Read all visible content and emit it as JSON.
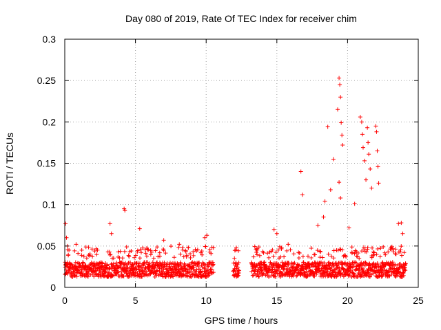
{
  "chart_data": {
    "type": "scatter",
    "title": "Day 080 of 2019, Rate Of TEC Index for receiver chim",
    "xlabel": "GPS time / hours",
    "ylabel": "ROTI / TECUs",
    "xlim": [
      0,
      25
    ],
    "ylim": [
      0,
      0.3
    ],
    "xticks": [
      0,
      5,
      10,
      15,
      20,
      25
    ],
    "yticks": [
      0,
      0.05,
      0.1,
      0.15,
      0.2,
      0.25,
      0.3
    ],
    "xtick_labels": [
      "0",
      "5",
      "10",
      "15",
      "20",
      "25"
    ],
    "ytick_labels": [
      "0",
      "0.05",
      "0.1",
      "0.15",
      "0.2",
      "0.25",
      "0.3"
    ],
    "grid": true,
    "marker": "+",
    "color": "#ff0000",
    "data_segments": [
      [
        0,
        10.5
      ],
      [
        11.9,
        12.3
      ],
      [
        13.2,
        24.1
      ]
    ],
    "baseline_range": [
      0.005,
      0.035
    ],
    "x": [
      0.05,
      0.12,
      0.2,
      0.3,
      0.8,
      1.2,
      3.2,
      3.3,
      4.2,
      4.25,
      5.3,
      7.0,
      8.1,
      9.9,
      10.05,
      12.0,
      12.1,
      14.8,
      15.0,
      15.8,
      16.7,
      16.8,
      17.9,
      18.3,
      18.4,
      18.6,
      18.8,
      19.0,
      19.3,
      19.4,
      19.45,
      19.5,
      19.55,
      19.6,
      19.65,
      19.4,
      19.5,
      20.1,
      20.5,
      20.9,
      21.0,
      21.05,
      21.1,
      21.2,
      21.3,
      21.4,
      21.45,
      21.5,
      21.6,
      21.7,
      22.0,
      22.05,
      22.1,
      22.15,
      22.2,
      23.6,
      23.8,
      23.9
    ],
    "y": [
      0.077,
      0.06,
      0.05,
      0.045,
      0.052,
      0.045,
      0.077,
      0.065,
      0.095,
      0.093,
      0.071,
      0.057,
      0.052,
      0.06,
      0.063,
      0.035,
      0.03,
      0.07,
      0.065,
      0.052,
      0.14,
      0.112,
      0.075,
      0.085,
      0.104,
      0.194,
      0.118,
      0.155,
      0.215,
      0.253,
      0.245,
      0.23,
      0.199,
      0.184,
      0.172,
      0.127,
      0.108,
      0.072,
      0.101,
      0.206,
      0.2,
      0.185,
      0.169,
      0.153,
      0.13,
      0.193,
      0.175,
      0.161,
      0.143,
      0.12,
      0.195,
      0.188,
      0.165,
      0.146,
      0.126,
      0.077,
      0.078,
      0.065
    ]
  }
}
